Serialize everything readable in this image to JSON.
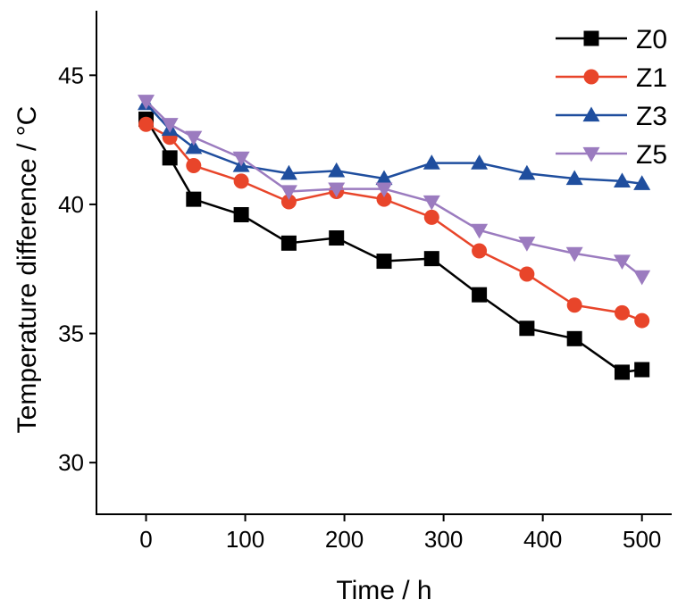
{
  "chart_data": {
    "type": "line",
    "xlabel": "Time / h",
    "ylabel": "Temperature difference / °C",
    "xlim": [
      -50,
      530
    ],
    "ylim": [
      28,
      47.5
    ],
    "xticks": [
      0,
      100,
      200,
      300,
      400,
      500
    ],
    "yticks": [
      30,
      35,
      40,
      45
    ],
    "legend_position": "top-right",
    "grid": false,
    "series": [
      {
        "name": "Z0",
        "color": "#000000",
        "marker": "square",
        "x": [
          0,
          24,
          48,
          96,
          144,
          192,
          240,
          288,
          336,
          384,
          432,
          480,
          500
        ],
        "y": [
          43.3,
          41.8,
          40.2,
          39.6,
          38.5,
          38.7,
          37.8,
          37.9,
          36.5,
          35.2,
          34.8,
          33.5,
          33.6
        ]
      },
      {
        "name": "Z1",
        "color": "#e8452a",
        "marker": "circle",
        "x": [
          0,
          24,
          48,
          96,
          144,
          192,
          240,
          288,
          336,
          384,
          432,
          480,
          500
        ],
        "y": [
          43.1,
          42.6,
          41.5,
          40.9,
          40.1,
          40.5,
          40.2,
          39.5,
          38.2,
          37.3,
          36.1,
          35.8,
          35.5
        ]
      },
      {
        "name": "Z3",
        "color": "#1f4e9e",
        "marker": "triangle-up",
        "x": [
          0,
          24,
          48,
          96,
          144,
          192,
          240,
          288,
          336,
          384,
          432,
          480,
          500
        ],
        "y": [
          43.9,
          42.9,
          42.2,
          41.5,
          41.2,
          41.3,
          41.0,
          41.6,
          41.6,
          41.2,
          41.0,
          40.9,
          40.8
        ]
      },
      {
        "name": "Z5",
        "color": "#9b7bbf",
        "marker": "triangle-down",
        "x": [
          0,
          24,
          48,
          96,
          144,
          192,
          240,
          288,
          336,
          384,
          432,
          480,
          500
        ],
        "y": [
          44.0,
          43.1,
          42.6,
          41.8,
          40.5,
          40.6,
          40.6,
          40.1,
          39.0,
          38.5,
          38.1,
          37.8,
          37.2
        ]
      }
    ]
  }
}
